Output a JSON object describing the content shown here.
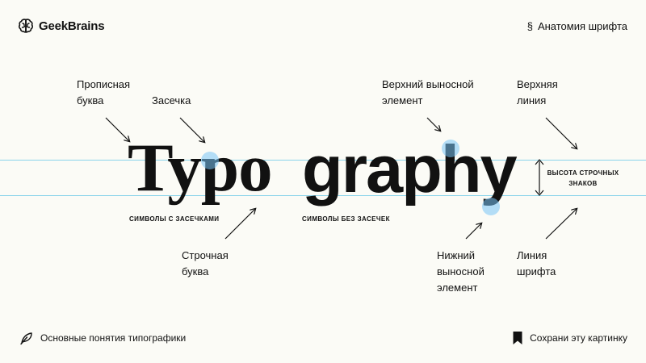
{
  "header": {
    "brand": "GeekBrains",
    "brand_icon": "brain-icon",
    "topic_icon": "section-sign-icon",
    "topic": "Анатомия шрифта"
  },
  "diagram": {
    "serif_word": "Typo",
    "sans_word": "graphy",
    "guide_color": "#8ad3ea",
    "highlight_color": "#78c4f5",
    "labels": {
      "uppercase": [
        "Прописная",
        "буква"
      ],
      "serif": "Засечка",
      "ascender": [
        "Верхний выносной",
        "элемент"
      ],
      "topline": [
        "Верхняя",
        "линия"
      ],
      "lowercase": [
        "Строчная",
        "буква"
      ],
      "descender": [
        "Нижний",
        "выносной",
        "элемент"
      ],
      "baseline": [
        "Линия",
        "шрифта"
      ],
      "serif_caption": "СИМВОЛЫ С ЗАСЕЧКАМИ",
      "sans_caption": "СИМВОЛЫ БЕЗ ЗАСЕЧЕК",
      "xheight": [
        "ВЫСОТА СТРОЧНЫХ",
        "ЗНАКОВ"
      ]
    }
  },
  "footer": {
    "left_icon": "feather-icon",
    "left_text": "Основные понятия типографики",
    "right_icon": "bookmark-icon",
    "right_text": "Сохрани эту картинку"
  }
}
